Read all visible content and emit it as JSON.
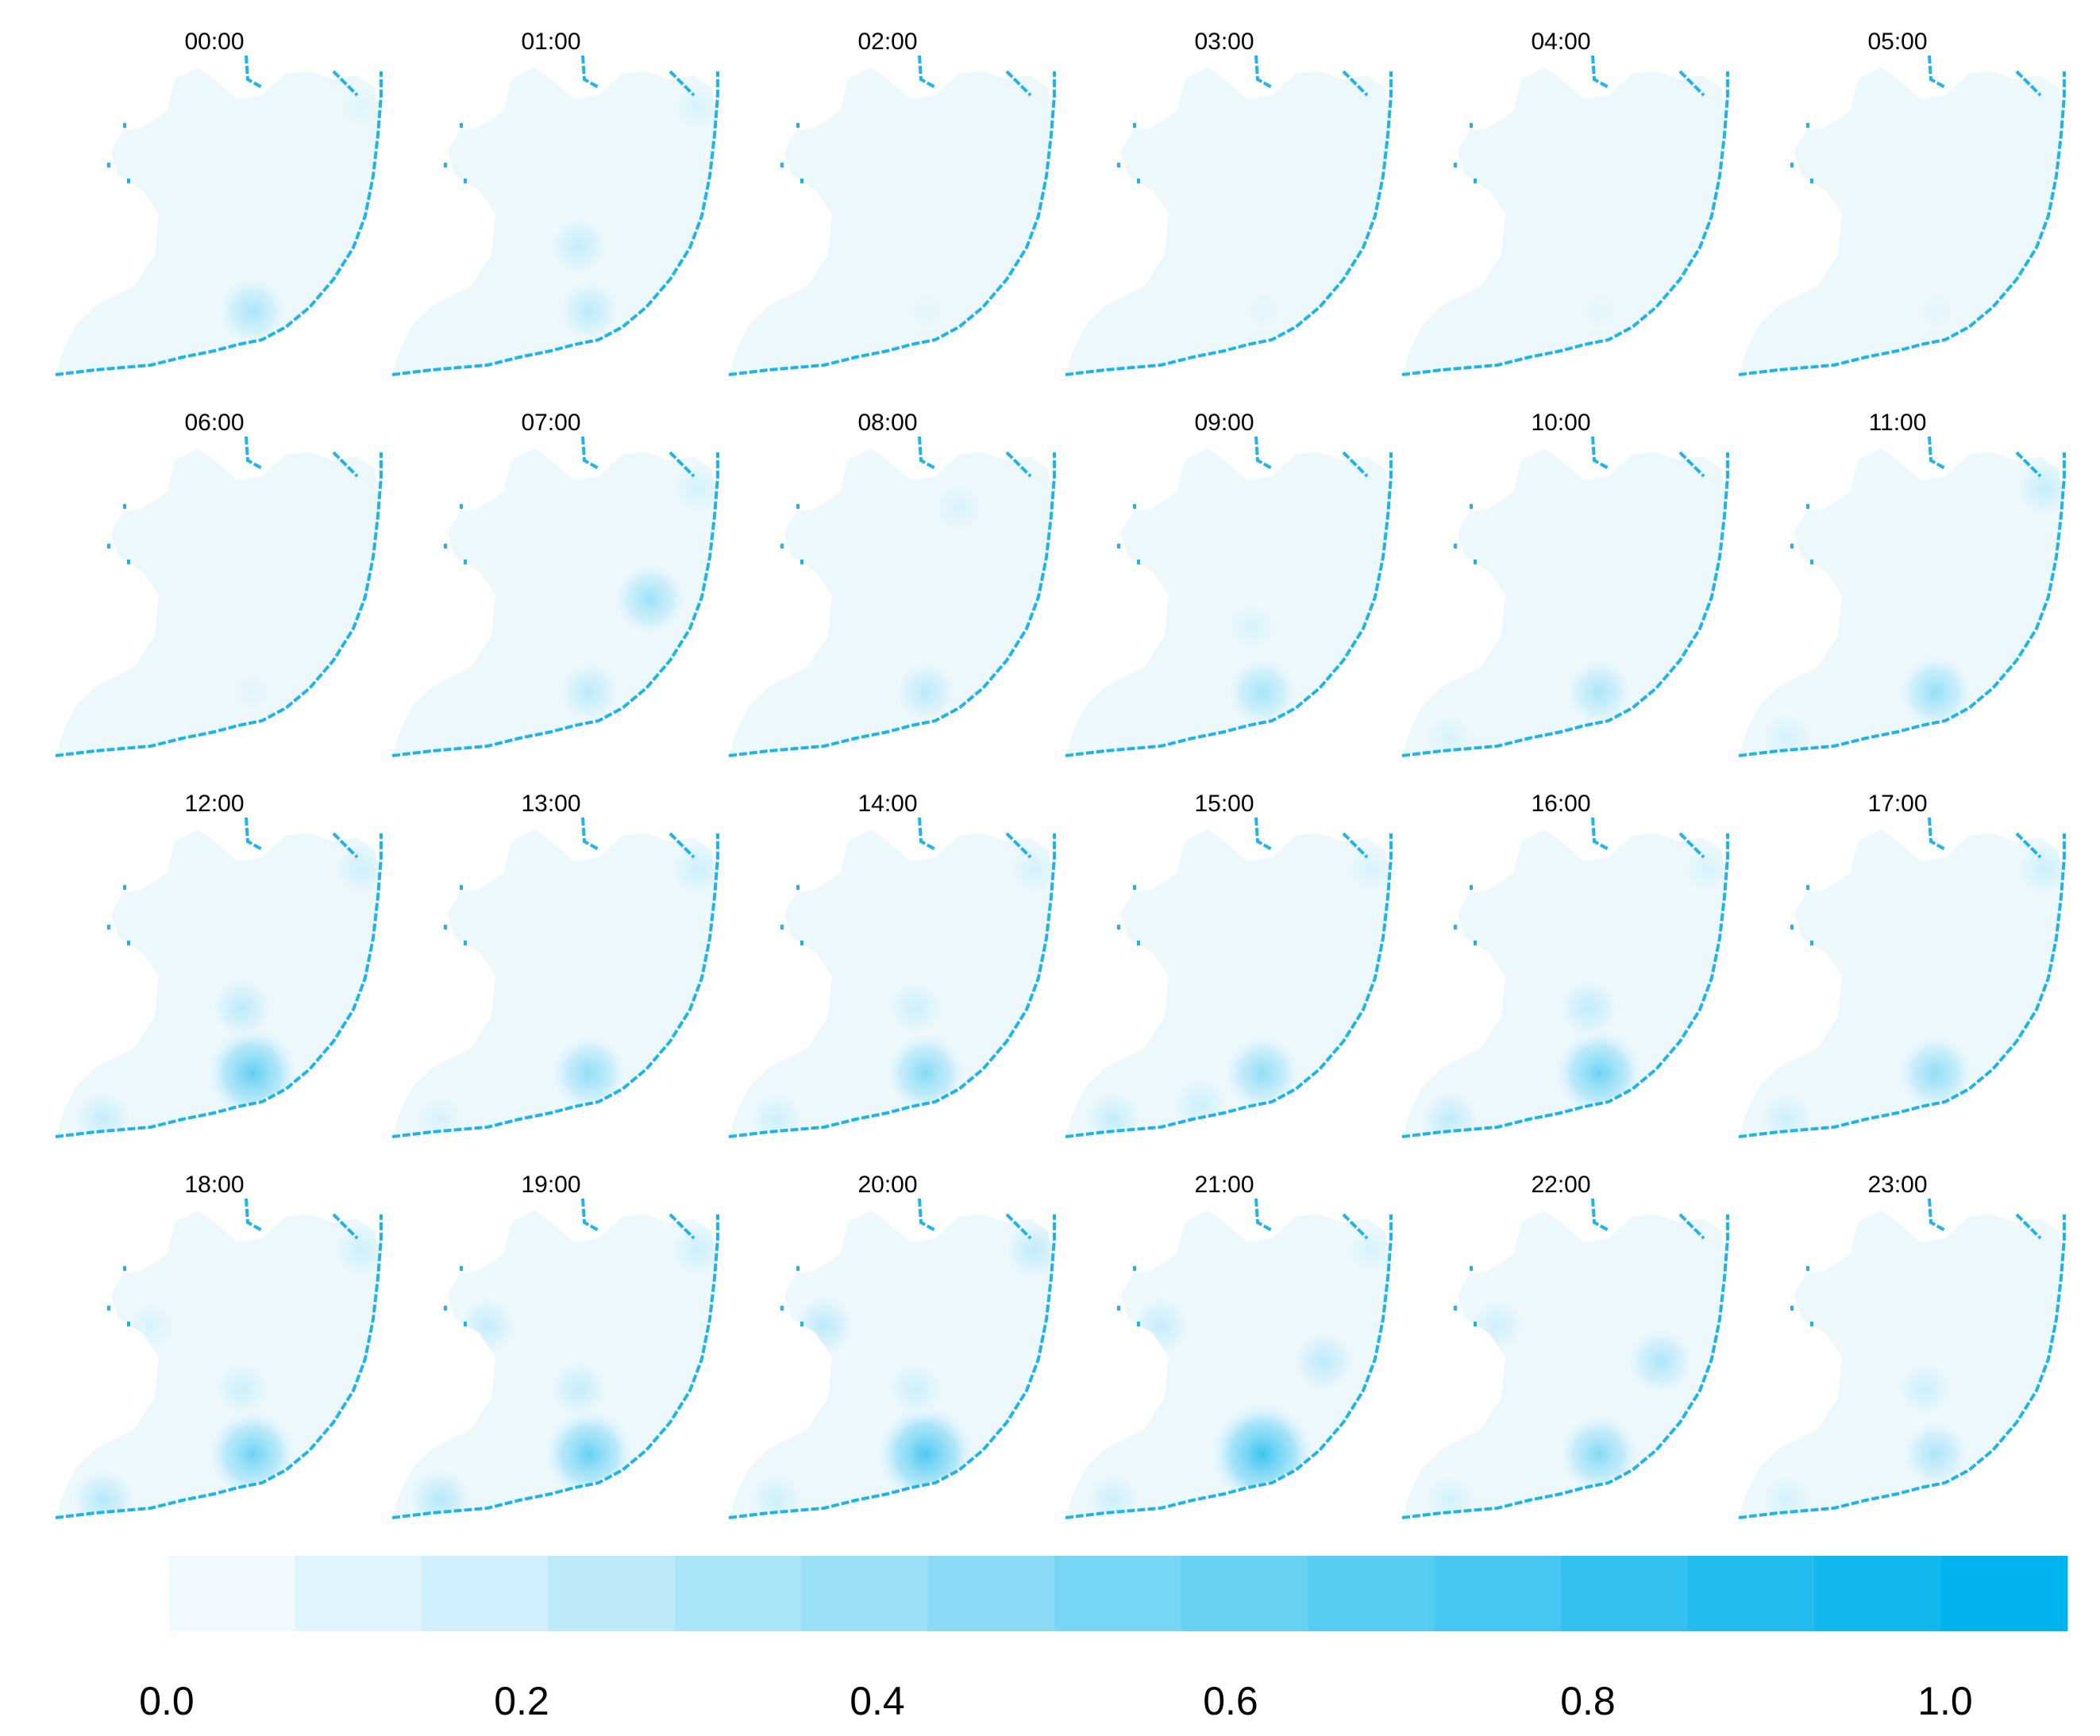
{
  "colors": {
    "low": "#f0f9fd",
    "high": "#00b3ec",
    "coastline": "#1cb4ea",
    "land_fill": "#edf8fd"
  },
  "panels": [
    {
      "label": "00:00",
      "hotspots": [
        {
          "loc": "center-south",
          "intensity": 0.3
        },
        {
          "loc": "northeast",
          "intensity": 0.07
        }
      ]
    },
    {
      "label": "01:00",
      "hotspots": [
        {
          "loc": "center-south",
          "intensity": 0.22
        },
        {
          "loc": "center",
          "intensity": 0.18
        },
        {
          "loc": "northeast",
          "intensity": 0.1
        }
      ]
    },
    {
      "label": "02:00",
      "hotspots": [
        {
          "loc": "center-south",
          "intensity": 0.05
        }
      ]
    },
    {
      "label": "03:00",
      "hotspots": [
        {
          "loc": "center-south",
          "intensity": 0.05
        }
      ]
    },
    {
      "label": "04:00",
      "hotspots": [
        {
          "loc": "center-south",
          "intensity": 0.05
        }
      ]
    },
    {
      "label": "05:00",
      "hotspots": [
        {
          "loc": "center-south",
          "intensity": 0.05
        }
      ]
    },
    {
      "label": "06:00",
      "hotspots": [
        {
          "loc": "center-south",
          "intensity": 0.06
        }
      ]
    },
    {
      "label": "07:00",
      "hotspots": [
        {
          "loc": "east",
          "intensity": 0.35
        },
        {
          "loc": "center-south",
          "intensity": 0.22
        },
        {
          "loc": "northeast",
          "intensity": 0.12
        }
      ]
    },
    {
      "label": "08:00",
      "hotspots": [
        {
          "loc": "center-south",
          "intensity": 0.22
        },
        {
          "loc": "north",
          "intensity": 0.1
        }
      ]
    },
    {
      "label": "09:00",
      "hotspots": [
        {
          "loc": "center-south",
          "intensity": 0.32
        },
        {
          "loc": "center",
          "intensity": 0.1
        }
      ]
    },
    {
      "label": "10:00",
      "hotspots": [
        {
          "loc": "center-south",
          "intensity": 0.28
        },
        {
          "loc": "southwest",
          "intensity": 0.1
        }
      ]
    },
    {
      "label": "11:00",
      "hotspots": [
        {
          "loc": "center-south",
          "intensity": 0.38
        },
        {
          "loc": "northeast",
          "intensity": 0.18
        },
        {
          "loc": "southwest",
          "intensity": 0.12
        }
      ]
    },
    {
      "label": "12:00",
      "hotspots": [
        {
          "loc": "center-south",
          "intensity": 0.6
        },
        {
          "loc": "center",
          "intensity": 0.22
        },
        {
          "loc": "southwest",
          "intensity": 0.18
        },
        {
          "loc": "northeast",
          "intensity": 0.14
        }
      ]
    },
    {
      "label": "13:00",
      "hotspots": [
        {
          "loc": "center-south",
          "intensity": 0.4
        },
        {
          "loc": "northeast",
          "intensity": 0.15
        },
        {
          "loc": "southwest",
          "intensity": 0.1
        }
      ]
    },
    {
      "label": "14:00",
      "hotspots": [
        {
          "loc": "center-south",
          "intensity": 0.45
        },
        {
          "loc": "center",
          "intensity": 0.15
        },
        {
          "loc": "southwest",
          "intensity": 0.14
        },
        {
          "loc": "northeast",
          "intensity": 0.12
        }
      ]
    },
    {
      "label": "15:00",
      "hotspots": [
        {
          "loc": "center-south",
          "intensity": 0.4
        },
        {
          "loc": "southwest",
          "intensity": 0.18
        },
        {
          "loc": "south",
          "intensity": 0.15
        },
        {
          "loc": "northeast",
          "intensity": 0.1
        }
      ]
    },
    {
      "label": "16:00",
      "hotspots": [
        {
          "loc": "center-south",
          "intensity": 0.55
        },
        {
          "loc": "center",
          "intensity": 0.2
        },
        {
          "loc": "southwest",
          "intensity": 0.2
        },
        {
          "loc": "northeast",
          "intensity": 0.1
        }
      ]
    },
    {
      "label": "17:00",
      "hotspots": [
        {
          "loc": "center-south",
          "intensity": 0.4
        },
        {
          "loc": "southwest",
          "intensity": 0.15
        },
        {
          "loc": "northeast",
          "intensity": 0.15
        }
      ]
    },
    {
      "label": "18:00",
      "hotspots": [
        {
          "loc": "center-south",
          "intensity": 0.55
        },
        {
          "loc": "southwest",
          "intensity": 0.25
        },
        {
          "loc": "northeast",
          "intensity": 0.15
        },
        {
          "loc": "center",
          "intensity": 0.15
        },
        {
          "loc": "west",
          "intensity": 0.1
        }
      ]
    },
    {
      "label": "19:00",
      "hotspots": [
        {
          "loc": "center-south",
          "intensity": 0.58
        },
        {
          "loc": "southwest",
          "intensity": 0.25
        },
        {
          "loc": "west",
          "intensity": 0.18
        },
        {
          "loc": "northeast",
          "intensity": 0.15
        },
        {
          "loc": "center",
          "intensity": 0.18
        }
      ]
    },
    {
      "label": "20:00",
      "hotspots": [
        {
          "loc": "center-south",
          "intensity": 0.68
        },
        {
          "loc": "west",
          "intensity": 0.22
        },
        {
          "loc": "northeast",
          "intensity": 0.2
        },
        {
          "loc": "southwest",
          "intensity": 0.15
        },
        {
          "loc": "center",
          "intensity": 0.15
        }
      ]
    },
    {
      "label": "21:00",
      "hotspots": [
        {
          "loc": "center-south",
          "intensity": 0.75
        },
        {
          "loc": "east",
          "intensity": 0.22
        },
        {
          "loc": "west",
          "intensity": 0.18
        },
        {
          "loc": "southwest",
          "intensity": 0.15
        },
        {
          "loc": "northeast",
          "intensity": 0.1
        }
      ]
    },
    {
      "label": "22:00",
      "hotspots": [
        {
          "loc": "center-south",
          "intensity": 0.45
        },
        {
          "loc": "east",
          "intensity": 0.28
        },
        {
          "loc": "west",
          "intensity": 0.14
        },
        {
          "loc": "southwest",
          "intensity": 0.12
        }
      ]
    },
    {
      "label": "23:00",
      "hotspots": [
        {
          "loc": "center-south",
          "intensity": 0.28
        },
        {
          "loc": "center",
          "intensity": 0.15
        },
        {
          "loc": "southwest",
          "intensity": 0.12
        }
      ]
    }
  ],
  "legend": {
    "min": 0.0,
    "max": 1.0,
    "steps": 15,
    "ticks": [
      "0.0",
      "0.2",
      "0.4",
      "0.6",
      "0.8",
      "1.0"
    ]
  }
}
